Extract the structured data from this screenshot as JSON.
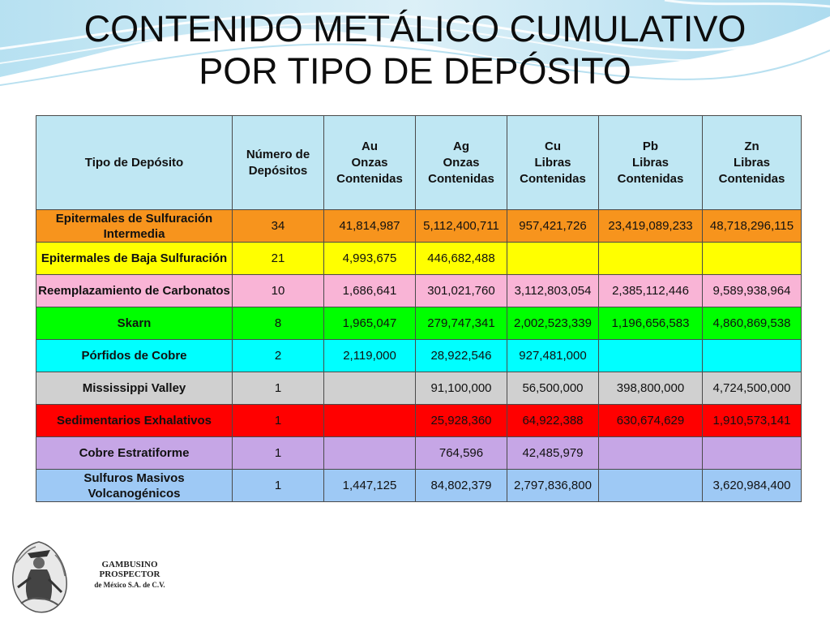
{
  "slide": {
    "title_line1": "CONTENIDO METÁLICO CUMULATIVO",
    "title_line2": "POR TIPO DE DEPÓSITO"
  },
  "table": {
    "headers": [
      [
        "Tipo de Depósito"
      ],
      [
        "Número de",
        "Depósitos"
      ],
      [
        "Au",
        "Onzas",
        "Contenidas"
      ],
      [
        "Ag",
        "Onzas",
        "Contenidas"
      ],
      [
        "Cu",
        "Libras",
        "Contenidas"
      ],
      [
        "Pb",
        "Libras",
        "Contenidas"
      ],
      [
        "Zn",
        "Libras",
        "Contenidas"
      ]
    ],
    "rows": [
      {
        "color": "#f7941d",
        "cells": [
          "Epitermales de Sulfuración Intermedia",
          "34",
          "41,814,987",
          "5,112,400,711",
          "957,421,726",
          "23,419,089,233",
          "48,718,296,115"
        ]
      },
      {
        "color": "#ffff00",
        "cells": [
          "Epitermales de Baja Sulfuración",
          "21",
          "4,993,675",
          "446,682,488",
          "",
          "",
          ""
        ]
      },
      {
        "color": "#f9b4d6",
        "cells": [
          "Reemplazamiento de Carbonatos",
          "10",
          "1,686,641",
          "301,021,760",
          "3,112,803,054",
          "2,385,112,446",
          "9,589,938,964"
        ]
      },
      {
        "color": "#00ff00",
        "cells": [
          "Skarn",
          "8",
          "1,965,047",
          "279,747,341",
          "2,002,523,339",
          "1,196,656,583",
          "4,860,869,538"
        ]
      },
      {
        "color": "#00ffff",
        "cells": [
          "Pórfidos de Cobre",
          "2",
          "2,119,000",
          "28,922,546",
          "927,481,000",
          "",
          ""
        ]
      },
      {
        "color": "#d0d0d0",
        "cells": [
          "Mississippi Valley",
          "1",
          "",
          "91,100,000",
          "56,500,000",
          "398,800,000",
          "4,724,500,000"
        ]
      },
      {
        "color": "#ff0000",
        "cells": [
          "Sedimentarios Exhalativos",
          "1",
          "",
          "25,928,360",
          "64,922,388",
          "630,674,629",
          "1,910,573,141"
        ]
      },
      {
        "color": "#c6a6e6",
        "cells": [
          "Cobre Estratiforme",
          "1",
          "",
          "764,596",
          "42,485,979",
          "",
          ""
        ]
      },
      {
        "color": "#9ec9f5",
        "cells": [
          "Sulfuros Masivos Volcanogénicos",
          "1",
          "1,447,125",
          "84,802,379",
          "2,797,836,800",
          "",
          "3,620,984,400"
        ]
      }
    ]
  },
  "footer": {
    "company_line1": "GAMBUSINO PROSPECTOR",
    "company_line2": "de México S.A. de C.V.",
    "logo_icon": "prospector-logo-icon"
  }
}
